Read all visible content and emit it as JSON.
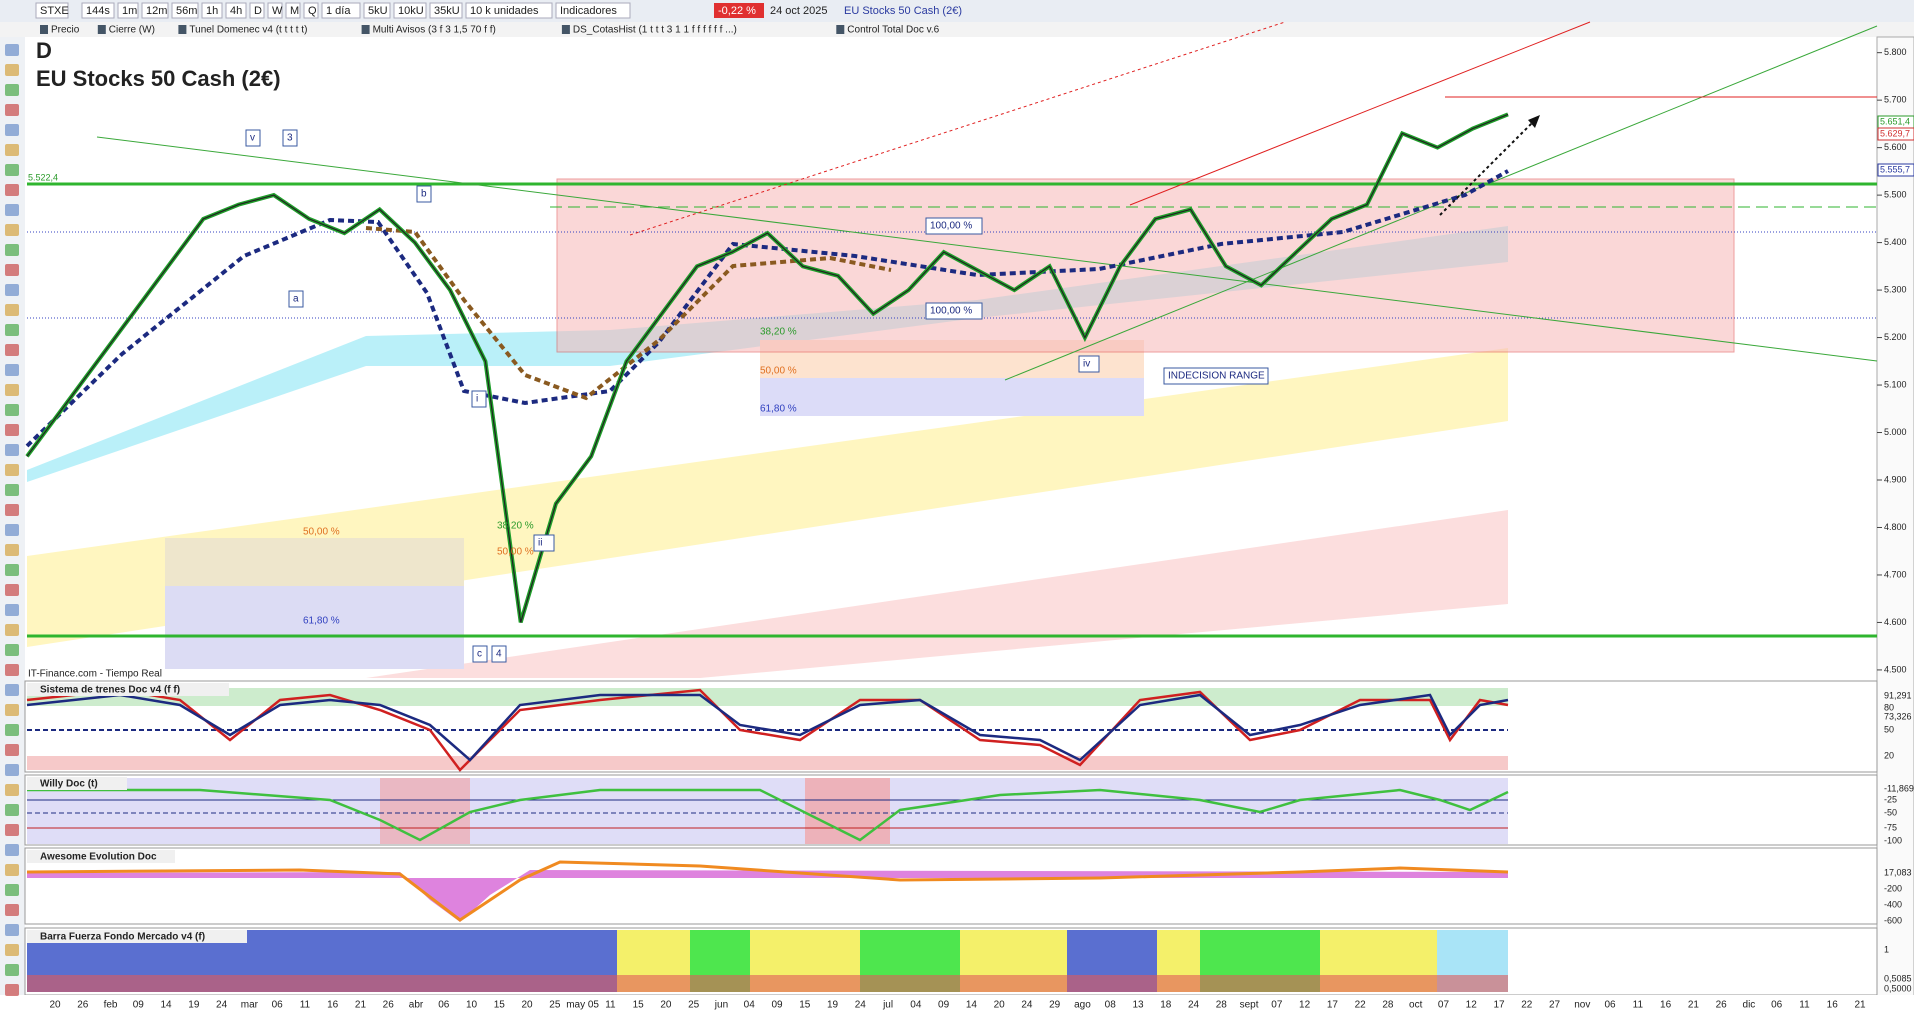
{
  "toolbar": {
    "symbol": "STXE",
    "timeframes": [
      "144s",
      "1m",
      "12m",
      "56m",
      "1h",
      "4h",
      "D",
      "W",
      "M",
      "Q"
    ],
    "period": "1 día",
    "units": [
      "5kU",
      "10kU",
      "35kU"
    ],
    "unit_select": "10 k unidades",
    "indicators": "Indicadores",
    "change": "-0,22 %",
    "date": "24 oct 2025",
    "instrument": "EU Stocks 50 Cash (2€)"
  },
  "studies": [
    "Precio",
    "Cierre (W)",
    "Tunel Domenec v4 (t t t t t)",
    "Multi Avisos (3 f 3 1,5 70 f f)",
    "DS_CotasHist (1 t t t 3 1 1 f f f f f f ...)",
    "Control Total Doc v.6"
  ],
  "chart_data": {
    "type": "line",
    "period": "D",
    "title": "EU Stocks 50 Cash (2€)",
    "source": "IT-Finance.com - Tiempo Real",
    "values": [
      4950,
      5050,
      5150,
      5250,
      5350,
      5450,
      5480,
      5500,
      5450,
      5420,
      5470,
      5400,
      5300,
      5150,
      4600,
      4850,
      4950,
      5150,
      5250,
      5350,
      5380,
      5420,
      5350,
      5330,
      5250,
      5300,
      5380,
      5340,
      5300,
      5350,
      5200,
      5350,
      5450,
      5470,
      5350,
      5310,
      5380,
      5450,
      5480,
      5630,
      5600,
      5640,
      5670
    ],
    "color": "#1f9e2a",
    "ylim": [
      4483,
      5833
    ],
    "yticks": [
      {
        "value": 4500,
        "label": "4.500"
      },
      {
        "value": 4600,
        "label": "4.600"
      },
      {
        "value": 4700,
        "label": "4.700"
      },
      {
        "value": 4800,
        "label": "4.800"
      },
      {
        "value": 4900,
        "label": "4.900"
      },
      {
        "value": 5000,
        "label": "5.000"
      },
      {
        "value": 5100,
        "label": "5.100"
      },
      {
        "value": 5200,
        "label": "5.200"
      },
      {
        "value": 5300,
        "label": "5.300"
      },
      {
        "value": 5400,
        "label": "5.400"
      },
      {
        "value": 5500,
        "label": "5.500"
      },
      {
        "value": 5600,
        "label": "5.600"
      },
      {
        "value": 5700,
        "label": "5.700"
      },
      {
        "value": 5800,
        "label": "5.800"
      }
    ],
    "x_labels": [
      "20",
      "26",
      "feb",
      "09",
      "14",
      "19",
      "24",
      "mar",
      "06",
      "11",
      "16",
      "21",
      "26",
      "abr",
      "06",
      "10",
      "15",
      "20",
      "25",
      "may 05",
      "11",
      "15",
      "20",
      "25",
      "jun",
      "04",
      "09",
      "15",
      "19",
      "24",
      "jul",
      "04",
      "09",
      "14",
      "20",
      "24",
      "29",
      "ago",
      "08",
      "13",
      "18",
      "24",
      "28",
      "sept",
      "07",
      "12",
      "17",
      "22",
      "28",
      "oct",
      "07",
      "12",
      "17",
      "22",
      "27",
      "nov",
      "06",
      "11",
      "16",
      "21",
      "26",
      "dic",
      "06",
      "11",
      "16",
      "21"
    ],
    "price_labels": [
      "5.651,4",
      "5.629,7",
      "5.555,7"
    ],
    "level_label": "5.522,4",
    "annotations": [
      "v",
      "3",
      "b",
      "a",
      "i",
      "ii",
      "c",
      "4",
      "iv",
      "100,00 %",
      "100,00 %",
      "38,20 %",
      "50,00 %",
      "61,80 %",
      "50,00 %",
      "61,80 %",
      "38,20 %",
      "50,00 %",
      "INDECISION RANGE"
    ]
  },
  "panels": [
    {
      "title": "Sistema de trenes Doc v4 (f f)",
      "labels": [
        "91,291",
        "73,326",
        "80",
        "50",
        "20"
      ]
    },
    {
      "title": "Willy Doc (t)",
      "labels": [
        "-11,869",
        "-25",
        "-50",
        "-75",
        "-100"
      ]
    },
    {
      "title": "Awesome Evolution Doc",
      "labels": [
        "17,083",
        "-200",
        "-400",
        "-600"
      ]
    },
    {
      "title": "Barra Fuerza Fondo Mercado v4 (f)",
      "labels": [
        "1",
        "0,5085",
        "0,5000"
      ]
    }
  ]
}
